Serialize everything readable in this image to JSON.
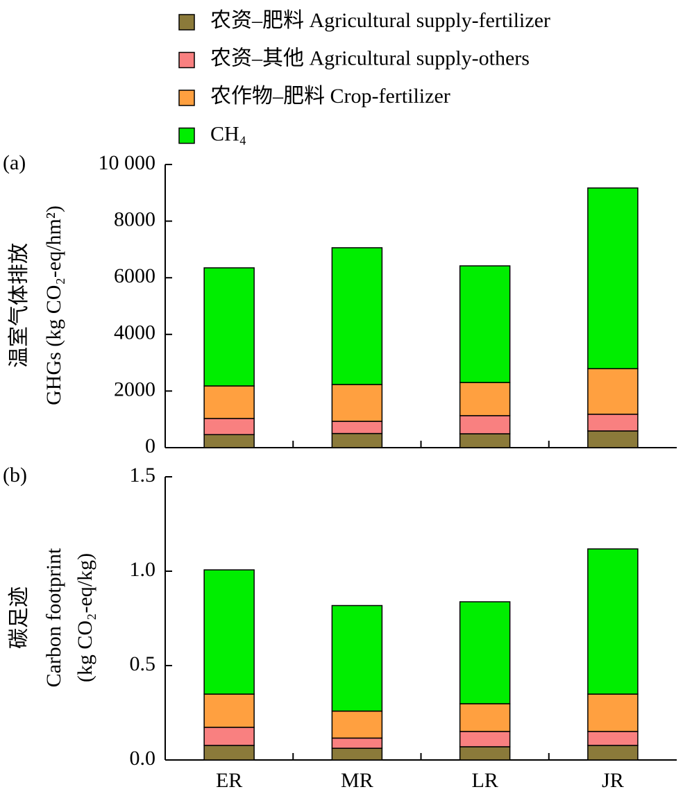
{
  "chart_data": [
    {
      "type": "stacked_bar",
      "panel": "(a)",
      "ylabel": [
        "温室气体排放",
        "GHGs (kg CO₂-eq/hm²)"
      ],
      "ylim": [
        0,
        10000
      ],
      "yticks": [
        0,
        2000,
        4000,
        6000,
        8000,
        {
          "value": 10000,
          "label": "10 000"
        }
      ],
      "series": [
        {
          "name": "农资–肥料 Agricultural supply-fertilizer",
          "color": "#8b7a3a",
          "values": [
            460,
            500,
            490,
            590
          ]
        },
        {
          "name": "农资–其他 Agricultural supply-others",
          "color": "#f98080",
          "values": [
            570,
            430,
            640,
            590
          ]
        },
        {
          "name": "农作物–肥料 Crop-fertilizer",
          "color": "#ffa040",
          "values": [
            1150,
            1300,
            1170,
            1610
          ]
        },
        {
          "name": "CH₄",
          "color": "#00ee00",
          "values": [
            4170,
            4830,
            4120,
            6380
          ]
        }
      ]
    },
    {
      "type": "stacked_bar",
      "panel": "(b)",
      "ylabel": [
        "碳足迹",
        "Carbon footprint",
        "(kg CO₂-eq/kg)"
      ],
      "categories": [
        "ER",
        "MR",
        "LR",
        "JR"
      ],
      "ylim": [
        0,
        1.5
      ],
      "yticks": [
        {
          "value": 0,
          "label": "0.0"
        },
        0.5,
        {
          "value": 1,
          "label": "1.0"
        },
        1.5
      ],
      "series": [
        {
          "color": "#8b7a3a",
          "values": [
            0.077,
            0.062,
            0.07,
            0.077
          ]
        },
        {
          "color": "#f98080",
          "values": [
            0.096,
            0.054,
            0.081,
            0.074
          ]
        },
        {
          "color": "#ffa040",
          "values": [
            0.176,
            0.143,
            0.147,
            0.198
          ]
        },
        {
          "color": "#00ee00",
          "values": [
            0.658,
            0.559,
            0.54,
            0.769
          ]
        }
      ]
    }
  ]
}
